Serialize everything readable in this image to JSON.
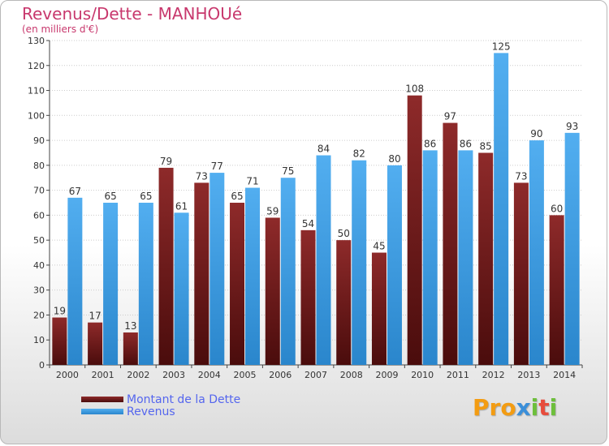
{
  "header": {
    "title": "Revenus/Dette - MANHOUé",
    "subtitle": "(en milliers d'€)"
  },
  "legend": {
    "items": [
      {
        "label": "Montant de la Dette",
        "color": "#7a1f1f"
      },
      {
        "label": "Revenus",
        "color": "#3d9be0"
      }
    ]
  },
  "logo": {
    "text": "Proxiti",
    "letter_colors": [
      "#f39c12",
      "#f39c12",
      "#f39c12",
      "#3b8fd9",
      "#6dbf3b",
      "#e74c3c",
      "#6dbf3b"
    ]
  },
  "chart_data": {
    "type": "bar",
    "title": "Revenus/Dette - MANHOUé",
    "subtitle": "(en milliers d'€)",
    "categories": [
      "2000",
      "2001",
      "2002",
      "2003",
      "2004",
      "2005",
      "2006",
      "2007",
      "2008",
      "2009",
      "2010",
      "2011",
      "2012",
      "2013",
      "2014"
    ],
    "series": [
      {
        "name": "Montant de la Dette",
        "color": "#7a1f1f",
        "values": [
          19,
          17,
          13,
          79,
          73,
          65,
          59,
          54,
          50,
          45,
          108,
          97,
          85,
          73,
          60
        ]
      },
      {
        "name": "Revenus",
        "color": "#3d9be0",
        "values": [
          67,
          65,
          65,
          61,
          77,
          71,
          75,
          84,
          82,
          80,
          86,
          86,
          125,
          90,
          93
        ]
      }
    ],
    "ylim": [
      0,
      130
    ],
    "yticks": [
      0,
      10,
      20,
      30,
      40,
      50,
      60,
      70,
      80,
      90,
      100,
      110,
      120,
      130
    ],
    "grid": true,
    "legend_position": "bottom-left"
  }
}
